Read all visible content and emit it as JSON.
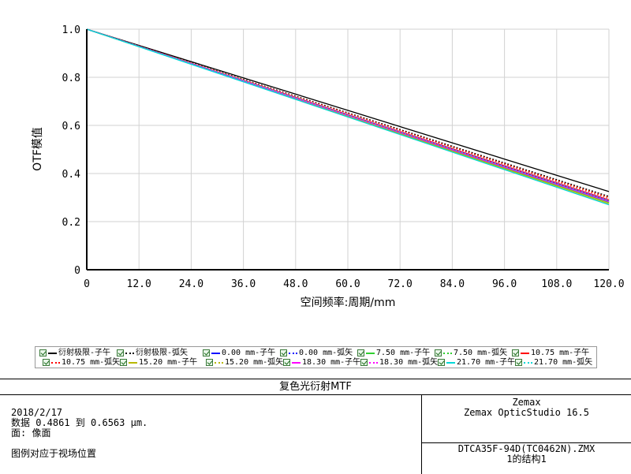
{
  "chart_data": {
    "type": "line",
    "xlabel": "空间频率:周期/mm",
    "ylabel": "OTF模值",
    "xlim": [
      0,
      120
    ],
    "ylim": [
      0,
      1
    ],
    "x_ticks": [
      "0",
      "12.0",
      "24.0",
      "36.0",
      "48.0",
      "60.0",
      "72.0",
      "84.0",
      "96.0",
      "108.0",
      "120.0"
    ],
    "y_ticks": [
      "0",
      "0.2",
      "0.4",
      "0.6",
      "0.8",
      "1.0"
    ],
    "grid": true,
    "x": [
      0,
      120
    ],
    "series": [
      {
        "name": "衍射极限-子午",
        "color": "#000000",
        "dash": "solid",
        "values": [
          1.0,
          0.325
        ]
      },
      {
        "name": "衍射极限-弧矢",
        "color": "#000000",
        "dash": "dotted",
        "values": [
          1.0,
          0.305
        ]
      },
      {
        "name": "0.00 mm-子午",
        "color": "#1010ff",
        "dash": "solid",
        "values": [
          1.0,
          0.285
        ]
      },
      {
        "name": "0.00 mm-弧矢",
        "color": "#1010ff",
        "dash": "dotted",
        "values": [
          1.0,
          0.288
        ]
      },
      {
        "name": "7.50 mm-子午",
        "color": "#30d030",
        "dash": "solid",
        "values": [
          1.0,
          0.28
        ]
      },
      {
        "name": "7.50 mm-弧矢",
        "color": "#30d030",
        "dash": "dotted",
        "values": [
          1.0,
          0.29
        ]
      },
      {
        "name": "10.75 mm-子午",
        "color": "#ff0000",
        "dash": "solid",
        "values": [
          1.0,
          0.29
        ]
      },
      {
        "name": "10.75 mm-弧矢",
        "color": "#ff0000",
        "dash": "dotted",
        "values": [
          1.0,
          0.3
        ]
      },
      {
        "name": "15.20 mm-子午",
        "color": "#b8b800",
        "dash": "solid",
        "values": [
          1.0,
          0.275
        ]
      },
      {
        "name": "15.20 mm-弧矢",
        "color": "#b8b800",
        "dash": "dotted",
        "values": [
          1.0,
          0.295
        ]
      },
      {
        "name": "18.30 mm-子午",
        "color": "#ff00ff",
        "dash": "solid",
        "values": [
          1.0,
          0.283
        ]
      },
      {
        "name": "18.30 mm-弧矢",
        "color": "#ff00ff",
        "dash": "dotted",
        "values": [
          1.0,
          0.292
        ]
      },
      {
        "name": "21.70 mm-子午",
        "color": "#00d8d8",
        "dash": "solid",
        "values": [
          1.0,
          0.27
        ]
      },
      {
        "name": "21.70 mm-弧矢",
        "color": "#00d8d8",
        "dash": "dotted",
        "values": [
          1.0,
          0.287
        ]
      }
    ]
  },
  "info": {
    "title": "复色光衍射MTF",
    "date": "2018/2/17",
    "data_range": "数据 0.4861 到 0.6563 μm.",
    "surface": "面: 像面",
    "legend_note": "图例对应于视场位置",
    "company": "Zemax",
    "product": "Zemax OpticStudio 16.5",
    "file": "DTCA35F-94D(TC0462N).ZMX",
    "config": "1的结构1"
  }
}
